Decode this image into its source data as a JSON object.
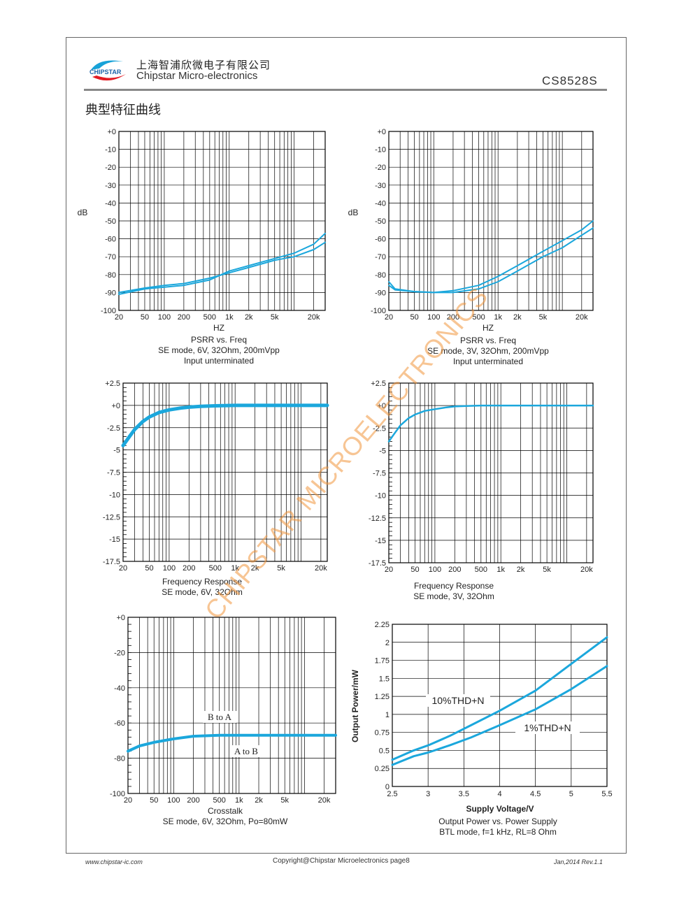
{
  "header": {
    "company_cn": "上海智浦欣微电子有限公司",
    "company_en": "Chipstar Micro-electronics",
    "logo_text": "CHIPSTAR",
    "part_number": "CS8528S"
  },
  "section_title": "典型特征曲线",
  "footer": {
    "website": "www.chipstar-ic.com",
    "copyright": "Copyright@Chipstar Microelectronics    page8",
    "revision": "Jan,2014  Rev.1.1"
  },
  "watermark": "CHIPSTAR MICROELECTRONICS",
  "colors": {
    "curve": "#1ba7dc",
    "grid": "#000000"
  },
  "chart_data": [
    {
      "type": "line",
      "ylabel": "dB",
      "xlabel": "HZ",
      "captions": [
        "PSRR vs. Freq",
        "SE mode, 6V, 32Ohm, 200mVpp",
        "Input unterminated"
      ],
      "xscale": "log",
      "xlim": [
        20,
        30000
      ],
      "x_ticks": [
        "20",
        "50",
        "100",
        "200",
        "500",
        "1k",
        "2k",
        "5k",
        "20k"
      ],
      "ylim": [
        -100,
        0
      ],
      "y_ticks": [
        "+0",
        "-10",
        "-20",
        "-30",
        "-40",
        "-50",
        "-60",
        "-70",
        "-80",
        "-90",
        "-100"
      ],
      "series": [
        {
          "x": [
            20,
            50,
            100,
            200,
            500,
            1000,
            2000,
            5000,
            10000,
            20000,
            30000
          ],
          "y": [
            -91,
            -88,
            -87,
            -86,
            -83,
            -78,
            -75,
            -71,
            -68,
            -63,
            -57
          ]
        },
        {
          "x": [
            20,
            50,
            100,
            200,
            500,
            1000,
            2000,
            5000,
            10000,
            20000,
            30000
          ],
          "y": [
            -90,
            -87.5,
            -86,
            -85,
            -82,
            -79,
            -76,
            -72,
            -70,
            -66,
            -62
          ]
        }
      ]
    },
    {
      "type": "line",
      "ylabel": "dB",
      "xlabel": "HZ",
      "captions": [
        "PSRR vs. Freq",
        "SE mode, 3V, 32Ohm, 200mVpp",
        "Input unterminated"
      ],
      "xscale": "log",
      "xlim": [
        20,
        30000
      ],
      "x_ticks": [
        "20",
        "50",
        "100",
        "200",
        "500",
        "1k",
        "2k",
        "5k",
        "20k"
      ],
      "ylim": [
        -100,
        0
      ],
      "y_ticks": [
        "+0",
        "-10",
        "-20",
        "-30",
        "-40",
        "-50",
        "-60",
        "-70",
        "-80",
        "-90",
        "-100"
      ],
      "series": [
        {
          "x": [
            20,
            25,
            50,
            100,
            200,
            500,
            1000,
            2000,
            5000,
            10000,
            20000,
            30000
          ],
          "y": [
            -84,
            -88,
            -89.5,
            -90,
            -89,
            -86,
            -81,
            -75,
            -67,
            -61,
            -55,
            -50
          ]
        },
        {
          "x": [
            20,
            25,
            50,
            100,
            200,
            500,
            1000,
            2000,
            5000,
            10000,
            20000,
            30000
          ],
          "y": [
            -86,
            -88.5,
            -89.5,
            -90,
            -90,
            -88,
            -84,
            -78,
            -70,
            -65,
            -58,
            -54
          ]
        }
      ]
    },
    {
      "type": "line",
      "xscale": "log",
      "xlim": [
        20,
        25000
      ],
      "x_ticks": [
        "20",
        "50",
        "100",
        "200",
        "500",
        "1k",
        "2k",
        "5k",
        "20k"
      ],
      "ylim": [
        -17.5,
        2.5
      ],
      "y_ticks": [
        "+2.5",
        "+0",
        "-2.5",
        "-5",
        "-7.5",
        "-10",
        "-12.5",
        "-15",
        "-17.5"
      ],
      "captions": [
        "Frequency Response",
        "SE mode, 6V, 32Ohm"
      ],
      "series": [
        {
          "x": [
            20,
            25,
            30,
            40,
            50,
            70,
            100,
            150,
            200,
            300,
            500,
            1000,
            2000,
            5000,
            10000,
            20000,
            25000
          ],
          "y": [
            -4.5,
            -3.5,
            -2.7,
            -1.8,
            -1.3,
            -0.8,
            -0.5,
            -0.3,
            -0.2,
            -0.1,
            -0.05,
            0,
            0,
            0,
            0,
            0,
            0
          ]
        }
      ]
    },
    {
      "type": "line",
      "xscale": "log",
      "xlim": [
        20,
        25000
      ],
      "x_ticks": [
        "20",
        "50",
        "100",
        "200",
        "500",
        "1k",
        "2k",
        "5k",
        "20k"
      ],
      "ylim": [
        -17.5,
        2.5
      ],
      "y_ticks": [
        "+2.5",
        "+0",
        "-2.5",
        "-5",
        "-7.5",
        "-10",
        "-12.5",
        "-15",
        "-17.5"
      ],
      "captions": [
        "Frequency Response",
        "SE mode, 3V, 32Ohm"
      ],
      "series": [
        {
          "x": [
            20,
            25,
            30,
            40,
            50,
            70,
            100,
            150,
            200,
            300,
            500,
            1000,
            2000,
            5000,
            10000,
            20000,
            25000
          ],
          "y": [
            -4,
            -3,
            -2.2,
            -1.4,
            -1,
            -0.6,
            -0.4,
            -0.2,
            -0.1,
            -0.05,
            0,
            0,
            0,
            0,
            0,
            0,
            0
          ]
        }
      ]
    },
    {
      "type": "line",
      "xscale": "log",
      "xlim": [
        20,
        30000
      ],
      "x_ticks": [
        "20",
        "50",
        "100",
        "200",
        "500",
        "1k",
        "2k",
        "5k",
        "20k"
      ],
      "ylim": [
        -100,
        0
      ],
      "y_ticks": [
        "+0",
        "-20",
        "-40",
        "-60",
        "-80",
        "-100"
      ],
      "captions": [
        "Crosstalk",
        "SE mode, 6V, 32Ohm, Po=80mW"
      ],
      "annotations": [
        "B to A",
        "A to B"
      ],
      "series": [
        {
          "x": [
            20,
            30,
            50,
            100,
            200,
            500,
            1000,
            2000,
            5000,
            10000,
            20000,
            30000
          ],
          "y": [
            -76,
            -73,
            -71,
            -69,
            -67.5,
            -67,
            -67,
            -67,
            -67,
            -67,
            -67,
            -67
          ]
        }
      ]
    },
    {
      "type": "line",
      "xlabel": "Supply Voltage/V",
      "ylabel": "Output Power/mW",
      "captions": [
        "Output Power vs. Power Supply",
        "BTL mode, f=1 kHz, RL=8 Ohm"
      ],
      "xlim": [
        2.5,
        5.5
      ],
      "x_ticks": [
        "2.5",
        "3",
        "3.5",
        "4",
        "4.5",
        "5",
        "5.5"
      ],
      "ylim": [
        0,
        2.25
      ],
      "y_ticks": [
        "0",
        "0.25",
        "0.5",
        "0.75",
        "1",
        "1.25",
        "1.5",
        "1.75",
        "2",
        "2.25"
      ],
      "series": [
        {
          "name": "10%THD+N",
          "x": [
            2.5,
            2.8,
            3.0,
            3.3,
            3.6,
            4.0,
            4.5,
            5.0,
            5.5
          ],
          "y": [
            0.37,
            0.5,
            0.57,
            0.7,
            0.85,
            1.05,
            1.33,
            1.7,
            2.07
          ]
        },
        {
          "name": "1%THD+N",
          "x": [
            2.5,
            2.8,
            3.0,
            3.3,
            3.6,
            4.0,
            4.5,
            5.0,
            5.5
          ],
          "y": [
            0.3,
            0.42,
            0.47,
            0.57,
            0.68,
            0.85,
            1.07,
            1.35,
            1.67
          ]
        }
      ]
    }
  ]
}
